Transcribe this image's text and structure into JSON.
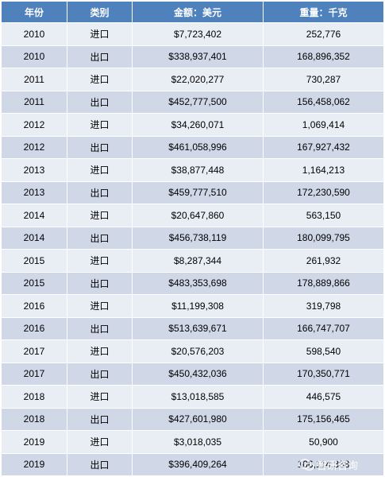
{
  "table": {
    "headers": [
      "年份",
      "类别",
      "金额：美元",
      "重量：千克"
    ],
    "rows": [
      [
        "2010",
        "进口",
        "$7,723,402",
        "252,776"
      ],
      [
        "2010",
        "出口",
        "$338,937,401",
        "168,896,352"
      ],
      [
        "2011",
        "进口",
        "$22,020,277",
        "730,287"
      ],
      [
        "2011",
        "出口",
        "$452,777,500",
        "156,458,062"
      ],
      [
        "2012",
        "进口",
        "$34,260,071",
        "1,069,414"
      ],
      [
        "2012",
        "出口",
        "$461,058,996",
        "167,927,432"
      ],
      [
        "2013",
        "进口",
        "$38,877,448",
        "1,164,213"
      ],
      [
        "2013",
        "出口",
        "$459,777,510",
        "172,230,590"
      ],
      [
        "2014",
        "进口",
        "$20,647,860",
        "563,150"
      ],
      [
        "2014",
        "出口",
        "$456,738,119",
        "180,099,795"
      ],
      [
        "2015",
        "进口",
        "$8,287,344",
        "261,932"
      ],
      [
        "2015",
        "出口",
        "$483,353,698",
        "178,889,866"
      ],
      [
        "2016",
        "进口",
        "$11,199,308",
        "319,798"
      ],
      [
        "2016",
        "出口",
        "$513,639,671",
        "166,747,707"
      ],
      [
        "2017",
        "进口",
        "$20,576,203",
        "598,540"
      ],
      [
        "2017",
        "出口",
        "$450,432,036",
        "170,350,771"
      ],
      [
        "2018",
        "进口",
        "$13,018,585",
        "446,575"
      ],
      [
        "2018",
        "出口",
        "$427,601,980",
        "175,156,465"
      ],
      [
        "2019",
        "进口",
        "$3,018,035",
        "50,900"
      ],
      [
        "2019",
        "出口",
        "$396,409,264",
        "106,114,338"
      ]
    ]
  },
  "watermark": {
    "text": "智研咨询",
    "icon": "wechat-icon"
  },
  "colors": {
    "header_bg": "#4f81bd",
    "row_light": "#e9edf4",
    "row_dark": "#d0d8e8"
  }
}
